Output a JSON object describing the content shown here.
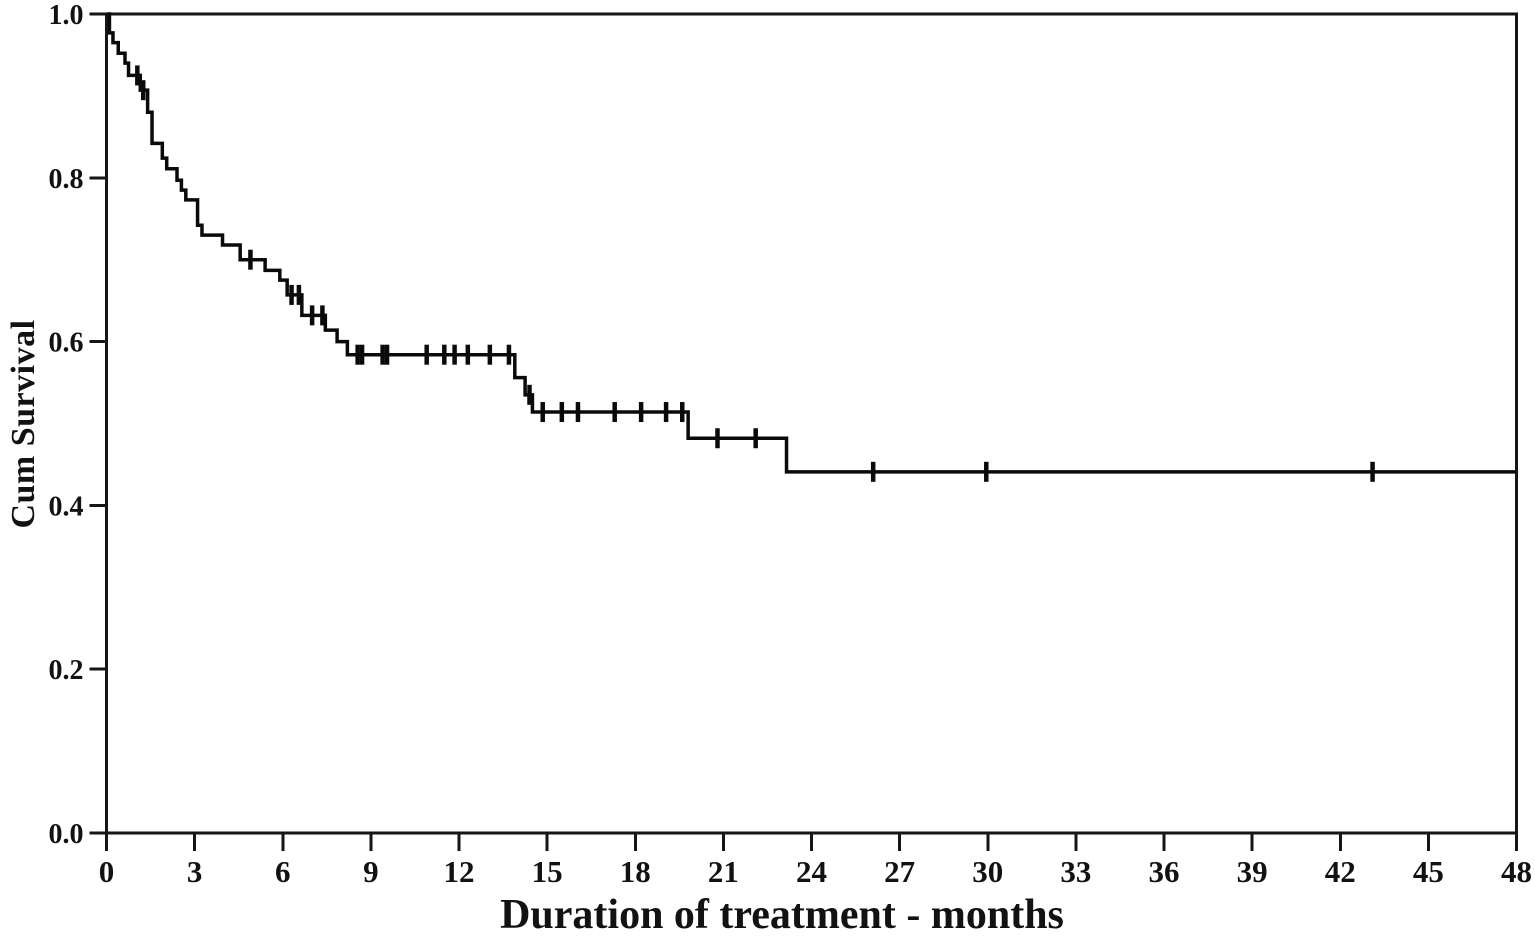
{
  "figure": {
    "background": "#ffffff",
    "axis_color": "#161616",
    "curve_color": "#0a0a0a"
  },
  "chart_data": {
    "type": "line",
    "chart_style": "kaplan-meier-step-function",
    "title": "",
    "xlabel": "Duration of treatment - months",
    "ylabel": "Cum Survival",
    "xlim": [
      0,
      48
    ],
    "ylim": [
      0.0,
      1.0
    ],
    "x_ticks": [
      "0",
      "3",
      "6",
      "9",
      "12",
      "15",
      "18",
      "21",
      "24",
      "27",
      "30",
      "33",
      "36",
      "39",
      "42",
      "45",
      "48"
    ],
    "y_ticks": [
      "0.0",
      "0.2",
      "0.4",
      "0.6",
      "0.8",
      "1.0"
    ],
    "grid": false,
    "frame": true,
    "legend_position": "none",
    "series": [
      {
        "name": "Cum Survival",
        "color": "#0a0a0a",
        "end_t": 48,
        "steps": [
          [
            0,
            1.0
          ],
          [
            0.1,
            0.977
          ],
          [
            0.22,
            0.965
          ],
          [
            0.4,
            0.952
          ],
          [
            0.63,
            0.94
          ],
          [
            0.75,
            0.925
          ],
          [
            1.15,
            0.907
          ],
          [
            1.4,
            0.88
          ],
          [
            1.55,
            0.842
          ],
          [
            1.9,
            0.824
          ],
          [
            2.05,
            0.811
          ],
          [
            2.4,
            0.797
          ],
          [
            2.55,
            0.785
          ],
          [
            2.7,
            0.773
          ],
          [
            3.1,
            0.742
          ],
          [
            3.25,
            0.73
          ],
          [
            3.95,
            0.718
          ],
          [
            4.55,
            0.7
          ],
          [
            5.4,
            0.687
          ],
          [
            5.9,
            0.675
          ],
          [
            6.15,
            0.657
          ],
          [
            6.65,
            0.632
          ],
          [
            7.45,
            0.614
          ],
          [
            7.85,
            0.6
          ],
          [
            8.2,
            0.584
          ],
          [
            13.9,
            0.556
          ],
          [
            14.25,
            0.535
          ],
          [
            14.5,
            0.514
          ],
          [
            19.8,
            0.482
          ],
          [
            23.15,
            0.441
          ]
        ],
        "censor_marks": [
          [
            1.05,
            0.925
          ],
          [
            1.25,
            0.907
          ],
          [
            4.9,
            0.7
          ],
          [
            6.3,
            0.657
          ],
          [
            6.55,
            0.657
          ],
          [
            7.0,
            0.632
          ],
          [
            7.35,
            0.632
          ],
          [
            8.55,
            0.584
          ],
          [
            8.7,
            0.584
          ],
          [
            9.4,
            0.584
          ],
          [
            9.55,
            0.584
          ],
          [
            10.9,
            0.584
          ],
          [
            11.5,
            0.584
          ],
          [
            11.85,
            0.584
          ],
          [
            12.3,
            0.584
          ],
          [
            13.05,
            0.584
          ],
          [
            13.7,
            0.584
          ],
          [
            14.4,
            0.535
          ],
          [
            14.85,
            0.514
          ],
          [
            15.5,
            0.514
          ],
          [
            16.05,
            0.514
          ],
          [
            17.3,
            0.514
          ],
          [
            18.2,
            0.514
          ],
          [
            19.05,
            0.514
          ],
          [
            19.6,
            0.514
          ],
          [
            20.8,
            0.482
          ],
          [
            22.1,
            0.482
          ],
          [
            26.1,
            0.441
          ],
          [
            29.95,
            0.441
          ],
          [
            43.1,
            0.441
          ]
        ]
      }
    ]
  }
}
